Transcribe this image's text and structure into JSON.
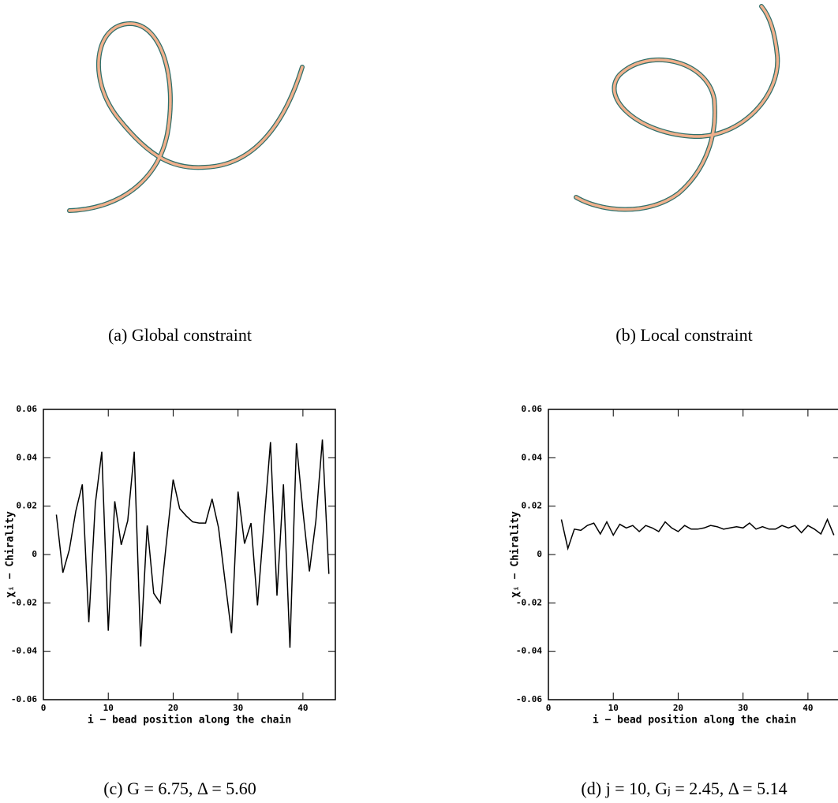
{
  "figure": {
    "panels": [
      {
        "caption": "(a) Global constraint"
      },
      {
        "caption": "(b) Local constraint"
      }
    ]
  },
  "chart_data": [
    {
      "type": "line",
      "caption": "(c) G = 6.75, Δ = 5.60",
      "xlabel": "i − bead position along the chain",
      "ylabel": "χᵢ − Chirality",
      "xlim": [
        0,
        45
      ],
      "xticks": [
        0,
        10,
        20,
        30,
        40
      ],
      "ylim": [
        -0.06,
        0.06
      ],
      "yticks": [
        -0.06,
        -0.04,
        -0.02,
        0,
        0.02,
        0.04,
        0.06
      ],
      "color": "#000000",
      "x": [
        2,
        3,
        4,
        5,
        6,
        7,
        8,
        9,
        10,
        11,
        12,
        13,
        14,
        15,
        16,
        17,
        18,
        19,
        20,
        21,
        22,
        23,
        24,
        25,
        26,
        27,
        28,
        29,
        30,
        31,
        32,
        33,
        34,
        35,
        36,
        37,
        38,
        39,
        40,
        41,
        42,
        43,
        44
      ],
      "values": [
        0.0165,
        -0.0075,
        0.002,
        0.018,
        0.029,
        -0.028,
        0.021,
        0.0425,
        -0.0315,
        0.022,
        0.004,
        0.014,
        0.0425,
        -0.038,
        0.012,
        -0.016,
        -0.02,
        0.006,
        0.031,
        0.019,
        0.016,
        0.0135,
        0.013,
        0.013,
        0.023,
        0.011,
        -0.011,
        -0.0325,
        0.026,
        0.0045,
        0.013,
        -0.021,
        0.013,
        0.0465,
        -0.017,
        0.029,
        -0.0385,
        0.046,
        0.018,
        -0.007,
        0.014,
        0.0475,
        -0.008
      ]
    },
    {
      "type": "line",
      "caption": "(d) j = 10, Gⱼ = 2.45, Δ = 5.14",
      "xlabel": "i − bead position along the chain",
      "ylabel": "χᵢ − Chirality",
      "xlim": [
        0,
        45
      ],
      "xticks": [
        0,
        10,
        20,
        30,
        40
      ],
      "ylim": [
        -0.06,
        0.06
      ],
      "yticks": [
        -0.06,
        -0.04,
        -0.02,
        0,
        0.02,
        0.04,
        0.06
      ],
      "color": "#000000",
      "x": [
        2,
        3,
        4,
        5,
        6,
        7,
        8,
        9,
        10,
        11,
        12,
        13,
        14,
        15,
        16,
        17,
        18,
        19,
        20,
        21,
        22,
        23,
        24,
        25,
        26,
        27,
        28,
        29,
        30,
        31,
        32,
        33,
        34,
        35,
        36,
        37,
        38,
        39,
        40,
        41,
        42,
        43,
        44
      ],
      "values": [
        0.0145,
        0.0025,
        0.0105,
        0.01,
        0.012,
        0.013,
        0.0085,
        0.0135,
        0.008,
        0.0125,
        0.011,
        0.012,
        0.0095,
        0.012,
        0.011,
        0.0095,
        0.0135,
        0.011,
        0.0095,
        0.012,
        0.0105,
        0.0105,
        0.011,
        0.012,
        0.0115,
        0.0105,
        0.011,
        0.0115,
        0.011,
        0.013,
        0.0105,
        0.0115,
        0.0105,
        0.0105,
        0.012,
        0.011,
        0.012,
        0.009,
        0.012,
        0.0105,
        0.0085,
        0.0145,
        0.008
      ]
    }
  ]
}
